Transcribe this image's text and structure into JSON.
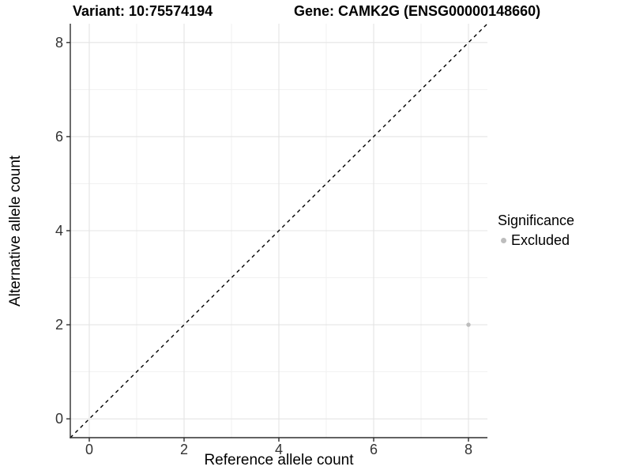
{
  "chart_data": {
    "type": "scatter",
    "title_left": "Variant: 10:75574194",
    "title_right": "Gene: CAMK2G (ENSG00000148660)",
    "xlabel": "Reference allele count",
    "ylabel": "Alternative allele count",
    "xlim": [
      -0.4,
      8.4
    ],
    "ylim": [
      -0.4,
      8.4
    ],
    "xticks": [
      0,
      2,
      4,
      6,
      8
    ],
    "yticks": [
      0,
      2,
      4,
      6,
      8
    ],
    "minor_gridlines": [
      1,
      3,
      5,
      7
    ],
    "grid": true,
    "identity_line": {
      "style": "dashed",
      "slope": 1,
      "intercept": 0
    },
    "series": [
      {
        "name": "Excluded",
        "color": "#bdbdbd",
        "points": [
          [
            8,
            2
          ]
        ]
      }
    ],
    "legend": {
      "title": "Significance",
      "position": "right",
      "items": [
        {
          "label": "Excluded",
          "color": "#bdbdbd"
        }
      ]
    }
  },
  "colors": {
    "background": "#ffffff",
    "grid_major": "#e4e4e4",
    "grid_minor": "#f1f1f1",
    "axis_line": "#2e2e2e",
    "tick_mark": "#2e2e2e",
    "identity_line": "#000000"
  }
}
